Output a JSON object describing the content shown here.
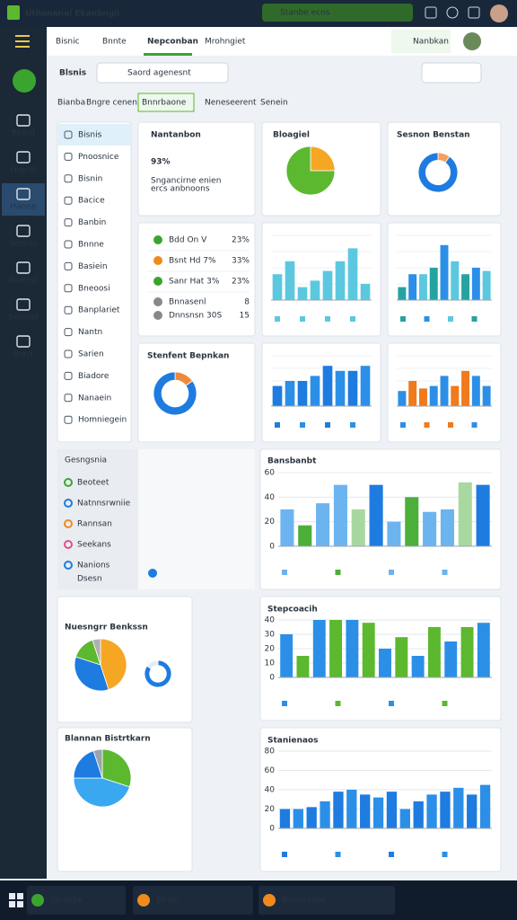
{
  "window": {
    "title": "Uthonanal Ekanbngii",
    "status": "Stanbe ecns"
  },
  "nav": {
    "tabs": [
      "Bisnic",
      "Bnnte",
      "Nepconban",
      "Mrohngiet"
    ],
    "active": 2,
    "button": "Nanbkan"
  },
  "sidebar": {
    "items": [
      "Bcard",
      "Fnocst",
      "Hanne",
      "Senrus",
      "Bicenst",
      "Snienst",
      "Biact"
    ],
    "active": 2
  },
  "header": {
    "title": "Blsnis",
    "search": "Saord agenesnt"
  },
  "tabs": {
    "items": [
      "Bianba",
      "Bngre cenen",
      "Bnnrbaone",
      "Neneseerent",
      "Senein"
    ],
    "active": 2
  },
  "menu": {
    "items": [
      "Bisnis",
      "Pnoosnice",
      "Bisnin",
      "Bacice",
      "Banbin",
      "Bnnne",
      "Basiein",
      "Bneoosi",
      "Banplariet",
      "Nantn",
      "Sarien",
      "Biadore",
      "Nanaein",
      "Homniegein"
    ],
    "active": 0
  },
  "kpi": {
    "title": "Nantanbon",
    "value": "93%",
    "sub": [
      "Sngancirne enien",
      "ercs anbnoons"
    ]
  },
  "status_list": {
    "rows": [
      {
        "label": "Bdd On V",
        "value": "23%",
        "color": "#3aa52e"
      },
      {
        "label": "Bsnt Hd 7%",
        "value": "33%",
        "color": "#f08a1c"
      },
      {
        "label": "Sanr Hat 3%",
        "value": "23%",
        "color": "#3aa52e"
      },
      {
        "label": "Bnnasenl",
        "value": "8",
        "color": "#888888"
      },
      {
        "label": "Dnnsnsn 30S",
        "value": "15",
        "color": "#888888"
      }
    ]
  },
  "groups": {
    "title": "Gesngsnia",
    "items": [
      "Beoteet",
      "Natnnsrwniie",
      "Rannsan",
      "Seekans",
      "Nanions"
    ],
    "foot": "Dsesn"
  },
  "charts": [
    {
      "type": "pie",
      "title": "Bloagiel",
      "values": [
        25,
        75
      ],
      "colors": [
        "#f5a623",
        "#5cb82e"
      ]
    },
    {
      "type": "donut",
      "title": "Sesnon Benstan",
      "values": [
        10,
        90
      ],
      "colors": [
        "#f5a05a",
        "#1e7be0"
      ]
    },
    {
      "type": "donut",
      "title": "Stenfent Bepnkan",
      "values": [
        15,
        85
      ],
      "colors": [
        "#f08a3a",
        "#1e7be0"
      ]
    },
    {
      "type": "bar",
      "values": [
        40,
        60,
        20,
        30,
        45,
        60,
        80,
        25
      ],
      "colors": [
        "#5bc8e0"
      ],
      "ylim": [
        0,
        100
      ]
    },
    {
      "type": "bar",
      "values": [
        20,
        40,
        40,
        50,
        85,
        60,
        40,
        50,
        45
      ],
      "colors": [
        "#25a3a0",
        "#2b8fe8",
        "#5bc8e0"
      ],
      "ylim": [
        0,
        100
      ]
    },
    {
      "type": "bar",
      "values": [
        40,
        50,
        50,
        60,
        80,
        70,
        70,
        80
      ],
      "colors": [
        "#1e7be0",
        "#2b8fe8"
      ],
      "ylim": [
        0,
        100
      ]
    },
    {
      "type": "bar",
      "values": [
        30,
        50,
        35,
        40,
        60,
        40,
        70,
        60,
        40
      ],
      "colors": [
        "#2b8fe8",
        "#f07a1c",
        "#f07a1c",
        "#2b8fe8"
      ],
      "ylim": [
        0,
        100
      ]
    },
    {
      "type": "bar",
      "title": "Bansbanbt",
      "values": [
        30,
        17,
        35,
        50,
        30,
        50,
        20,
        40,
        28,
        30,
        52,
        50
      ],
      "colors": [
        "#6cb4f0",
        "#4caf3a",
        "#6cb4f0",
        "#6cb4f0",
        "#a8d8a0",
        "#1e7be0"
      ],
      "ylim": [
        0,
        60
      ],
      "yticks": [
        0,
        20,
        40,
        60
      ]
    },
    {
      "type": "bar",
      "title": "Stepcoacih",
      "values": [
        30,
        15,
        40,
        40,
        40,
        38,
        20,
        28,
        15,
        35,
        25,
        35,
        38
      ],
      "colors": [
        "#2b8fe8",
        "#5cb82e"
      ],
      "ylim": [
        0,
        40
      ],
      "yticks": [
        0,
        10,
        20,
        30,
        40
      ]
    },
    {
      "type": "bar",
      "title": "Stanienaos",
      "values": [
        20,
        20,
        22,
        28,
        38,
        40,
        35,
        32,
        38,
        20,
        28,
        35,
        38,
        42,
        35,
        45
      ],
      "colors": [
        "#1e7be0",
        "#2b8fe8"
      ],
      "ylim": [
        0,
        80
      ],
      "yticks": [
        0,
        20,
        40,
        60,
        80
      ]
    },
    {
      "type": "pie",
      "title": "Nuesngrr Benkssn",
      "values": [
        45,
        35,
        15,
        5
      ],
      "colors": [
        "#f5a623",
        "#1e7be0",
        "#5cb82e",
        "#b0b0b0"
      ]
    },
    {
      "type": "donut",
      "values": [
        85,
        15
      ],
      "colors": [
        "#1e7be0",
        "#e3edf8"
      ]
    },
    {
      "type": "pie",
      "title": "Blannan Bistrtkarn",
      "values": [
        30,
        45,
        20,
        5
      ],
      "colors": [
        "#5cb82e",
        "#3aa8f0",
        "#1e7be0",
        "#9aa4ae"
      ]
    }
  ],
  "taskbar": {
    "items": [
      "Stnnsbe",
      "Blrsic",
      "Bonnsanbs"
    ]
  }
}
